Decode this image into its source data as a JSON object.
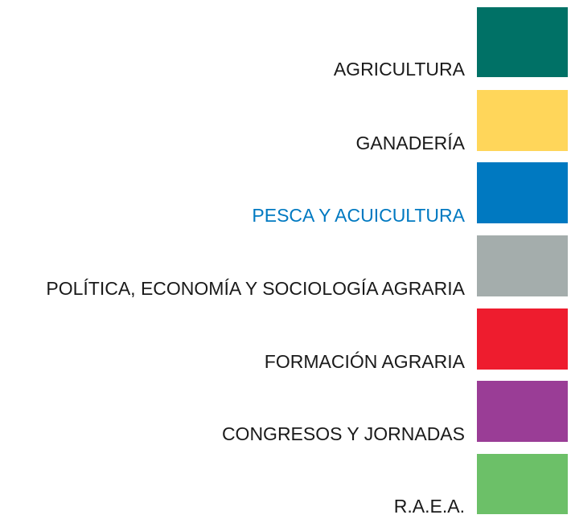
{
  "menu": {
    "items": [
      {
        "label": "AGRICULTURA",
        "color": "#007166"
      },
      {
        "label": "GANADERÍA",
        "color": "#ffd65a"
      },
      {
        "label": "PESCA Y ACUICULTURA",
        "color": "#0079c1"
      },
      {
        "label": "POLÍTICA, ECONOMÍA Y SOCIOLOGÍA AGRARIA",
        "color": "#a4adac"
      },
      {
        "label": "FORMACIÓN AGRARIA",
        "color": "#ee1c2e"
      },
      {
        "label": "CONGRESOS Y JORNADAS",
        "color": "#9a3d96"
      },
      {
        "label": "R.A.E.A.",
        "color": "#6cc068"
      }
    ],
    "selected_index": 2,
    "text_color": "#1a1a1a"
  }
}
